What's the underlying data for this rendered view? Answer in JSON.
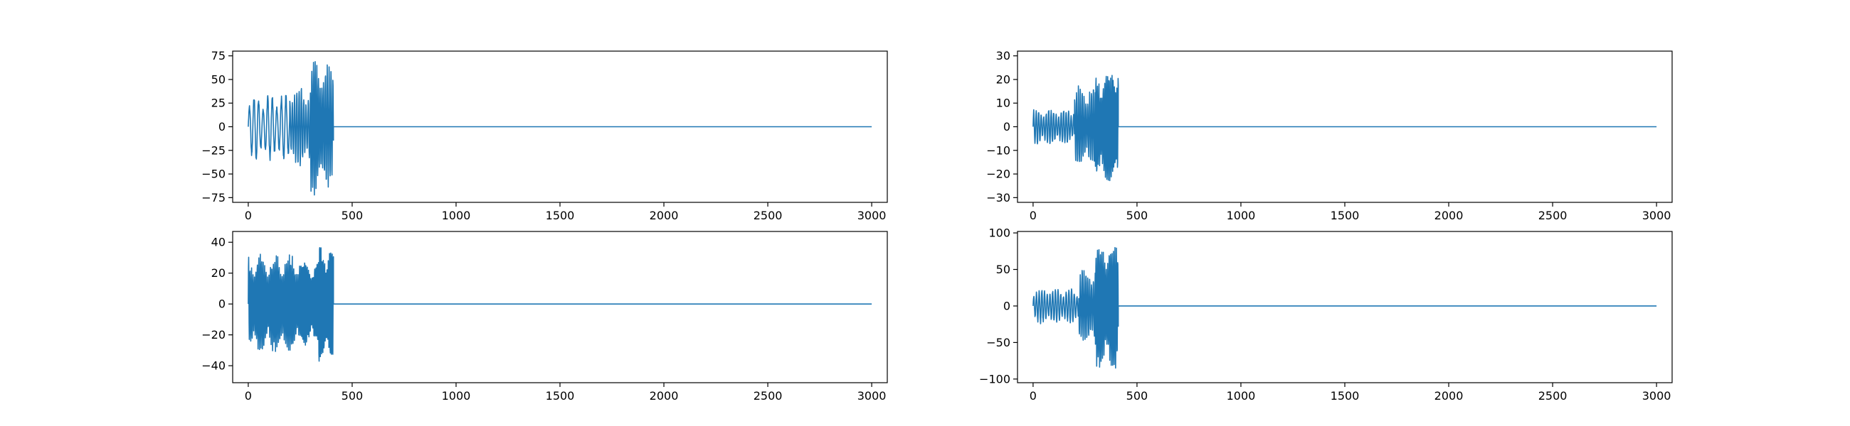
{
  "colors": {
    "line": "#1f77b4",
    "axes": "#000000",
    "background": "#ffffff"
  },
  "chart_data": [
    {
      "type": "line",
      "title": "",
      "xlabel": "",
      "ylabel": "",
      "grid": false,
      "xlim": [
        -75,
        3075
      ],
      "ylim": [
        -80,
        80
      ],
      "xticks": [
        0,
        500,
        1000,
        1500,
        2000,
        2500,
        3000
      ],
      "xtick_labels": [
        "0",
        "500",
        "1000",
        "1500",
        "2000",
        "2500",
        "3000"
      ],
      "yticks": [
        -75,
        -50,
        -25,
        0,
        25,
        50,
        75
      ],
      "ytick_labels": [
        "−75",
        "−50",
        "−25",
        "0",
        "25",
        "50",
        "75"
      ],
      "series": [
        {
          "x_start": 0,
          "x_end": 3000,
          "active_until": 410,
          "segments": [
            {
              "from": 0,
              "to": 200,
              "amplitude": 37,
              "period": 22
            },
            {
              "from": 200,
              "to": 300,
              "amplitude": 45,
              "period": 11
            },
            {
              "from": 300,
              "to": 360,
              "amplitude": 75,
              "period": 8
            },
            {
              "from": 360,
              "to": 410,
              "amplitude": 68,
              "period": 9
            }
          ]
        }
      ]
    },
    {
      "type": "line",
      "title": "",
      "xlabel": "",
      "ylabel": "",
      "grid": false,
      "xlim": [
        -75,
        3075
      ],
      "ylim": [
        -32,
        32
      ],
      "xticks": [
        0,
        500,
        1000,
        1500,
        2000,
        2500,
        3000
      ],
      "xtick_labels": [
        "0",
        "500",
        "1000",
        "1500",
        "2000",
        "2500",
        "3000"
      ],
      "yticks": [
        -30,
        -20,
        -10,
        0,
        10,
        20,
        30
      ],
      "ytick_labels": [
        "−30",
        "−20",
        "−10",
        "0",
        "10",
        "20",
        "30"
      ],
      "series": [
        {
          "x_start": 0,
          "x_end": 3000,
          "active_until": 410,
          "segments": [
            {
              "from": 0,
              "to": 200,
              "amplitude": 8,
              "period": 12
            },
            {
              "from": 200,
              "to": 300,
              "amplitude": 18,
              "period": 9
            },
            {
              "from": 300,
              "to": 380,
              "amplitude": 26,
              "period": 7
            },
            {
              "from": 380,
              "to": 410,
              "amplitude": 30,
              "period": 6
            }
          ]
        }
      ]
    },
    {
      "type": "line",
      "title": "",
      "xlabel": "",
      "ylabel": "",
      "grid": false,
      "xlim": [
        -75,
        3075
      ],
      "ylim": [
        -51,
        47
      ],
      "xticks": [
        0,
        500,
        1000,
        1500,
        2000,
        2500,
        3000
      ],
      "xtick_labels": [
        "0",
        "500",
        "1000",
        "1500",
        "2000",
        "2500",
        "3000"
      ],
      "yticks": [
        -40,
        -20,
        0,
        20,
        40
      ],
      "ytick_labels": [
        "−40",
        "−20",
        "0",
        "20",
        "40"
      ],
      "series": [
        {
          "x_start": 0,
          "x_end": 3000,
          "active_until": 410,
          "segments": [
            {
              "from": 0,
              "to": 250,
              "amplitude": 34,
              "period": 7
            },
            {
              "from": 250,
              "to": 340,
              "amplitude": 32,
              "period": 6
            },
            {
              "from": 340,
              "to": 410,
              "amplitude": 45,
              "period": 6
            }
          ]
        }
      ]
    },
    {
      "type": "line",
      "title": "",
      "xlabel": "",
      "ylabel": "",
      "grid": false,
      "xlim": [
        -75,
        3075
      ],
      "ylim": [
        -105,
        102
      ],
      "xticks": [
        0,
        500,
        1000,
        1500,
        2000,
        2500,
        3000
      ],
      "xtick_labels": [
        "0",
        "500",
        "1000",
        "1500",
        "2000",
        "2500",
        "3000"
      ],
      "yticks": [
        -100,
        -50,
        0,
        50,
        100
      ],
      "ytick_labels": [
        "−100",
        "−50",
        "0",
        "50",
        "100"
      ],
      "series": [
        {
          "x_start": 0,
          "x_end": 3000,
          "active_until": 410,
          "segments": [
            {
              "from": 0,
              "to": 220,
              "amplitude": 25,
              "period": 13
            },
            {
              "from": 220,
              "to": 300,
              "amplitude": 55,
              "period": 9
            },
            {
              "from": 300,
              "to": 410,
              "amplitude": 95,
              "period": 7
            }
          ]
        }
      ]
    }
  ]
}
